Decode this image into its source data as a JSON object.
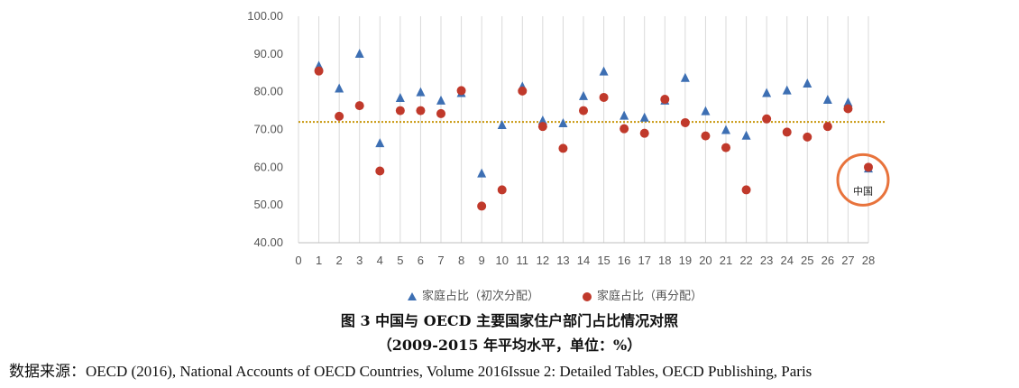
{
  "chart_data": {
    "type": "scatter",
    "x": [
      1,
      2,
      3,
      4,
      5,
      6,
      7,
      8,
      9,
      10,
      11,
      12,
      13,
      14,
      15,
      16,
      17,
      18,
      19,
      20,
      21,
      22,
      23,
      24,
      25,
      26,
      27,
      28
    ],
    "xlim": [
      0,
      28
    ],
    "ylim": [
      40,
      100
    ],
    "ytick_labels": [
      "40.00",
      "50.00",
      "60.00",
      "70.00",
      "80.00",
      "90.00",
      "100.00"
    ],
    "xtick_labels": [
      "0",
      "1",
      "2",
      "3",
      "4",
      "5",
      "6",
      "7",
      "8",
      "9",
      "10",
      "11",
      "12",
      "13",
      "14",
      "15",
      "16",
      "17",
      "18",
      "19",
      "20",
      "21",
      "22",
      "23",
      "24",
      "25",
      "26",
      "27",
      "28"
    ],
    "grid": "vertical",
    "series": [
      {
        "name": "家庭占比（初次分配）",
        "marker": "triangle",
        "color": "#3d6fb3",
        "values": [
          87.0,
          81.0,
          90.2,
          66.5,
          78.5,
          80.0,
          77.8,
          79.8,
          58.5,
          71.3,
          81.5,
          72.5,
          71.8,
          79.0,
          85.5,
          73.8,
          73.3,
          77.8,
          83.8,
          75.0,
          70.0,
          68.5,
          79.8,
          80.5,
          82.3,
          78.0,
          77.3,
          59.8
        ]
      },
      {
        "name": "家庭占比（再分配）",
        "marker": "circle",
        "color": "#c0392b",
        "values": [
          85.5,
          73.5,
          76.3,
          59.0,
          75.0,
          75.0,
          74.2,
          80.3,
          49.7,
          54.0,
          80.2,
          70.8,
          65.0,
          75.0,
          78.5,
          70.2,
          69.0,
          78.0,
          71.8,
          68.3,
          65.2,
          54.0,
          72.8,
          69.3,
          68.0,
          70.8,
          75.5,
          60.0
        ]
      }
    ],
    "reference_line": {
      "value": 72,
      "color": "#c8960a"
    },
    "annotation": {
      "x": 28,
      "y": 60,
      "label": "中国",
      "circle_color": "#e8733c"
    },
    "legend_position": "bottom"
  },
  "caption": {
    "title": "图 3  中国与 OECD 主要国家住户部门占比情况对照",
    "subtitle": "（2009-2015 年平均水平，单位：%）"
  },
  "source": "数据来源：OECD (2016), National Accounts of OECD Countries, Volume 2016Issue 2: Detailed Tables, OECD Publishing, Paris"
}
